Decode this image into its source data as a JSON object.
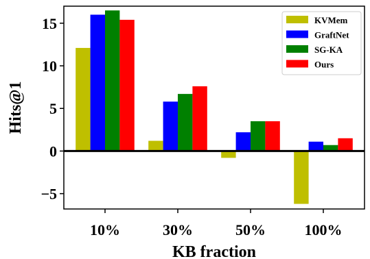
{
  "chart_data": {
    "type": "bar",
    "categories": [
      "10%",
      "30%",
      "50%",
      "100%"
    ],
    "series": [
      {
        "name": "KVMem",
        "color": "#bfbf00",
        "values": [
          12.1,
          1.2,
          -0.8,
          -6.2
        ]
      },
      {
        "name": "GraftNet",
        "color": "#0000ff",
        "values": [
          16.0,
          5.8,
          2.2,
          1.1
        ]
      },
      {
        "name": "SG-KA",
        "color": "#008000",
        "values": [
          16.5,
          6.7,
          3.5,
          0.7
        ]
      },
      {
        "name": "Ours",
        "color": "#ff0000",
        "values": [
          15.4,
          7.6,
          3.5,
          1.5
        ]
      }
    ],
    "xlabel": "KB fraction",
    "ylabel": "Hits@1",
    "ylim": [
      -6.8,
      17
    ],
    "yticks": [
      -5,
      0,
      5,
      10,
      15
    ],
    "ytick_labels": [
      "−5",
      "0",
      "5",
      "10",
      "15"
    ],
    "legend_position": "top-right",
    "zero_line": true,
    "grid": false
  }
}
